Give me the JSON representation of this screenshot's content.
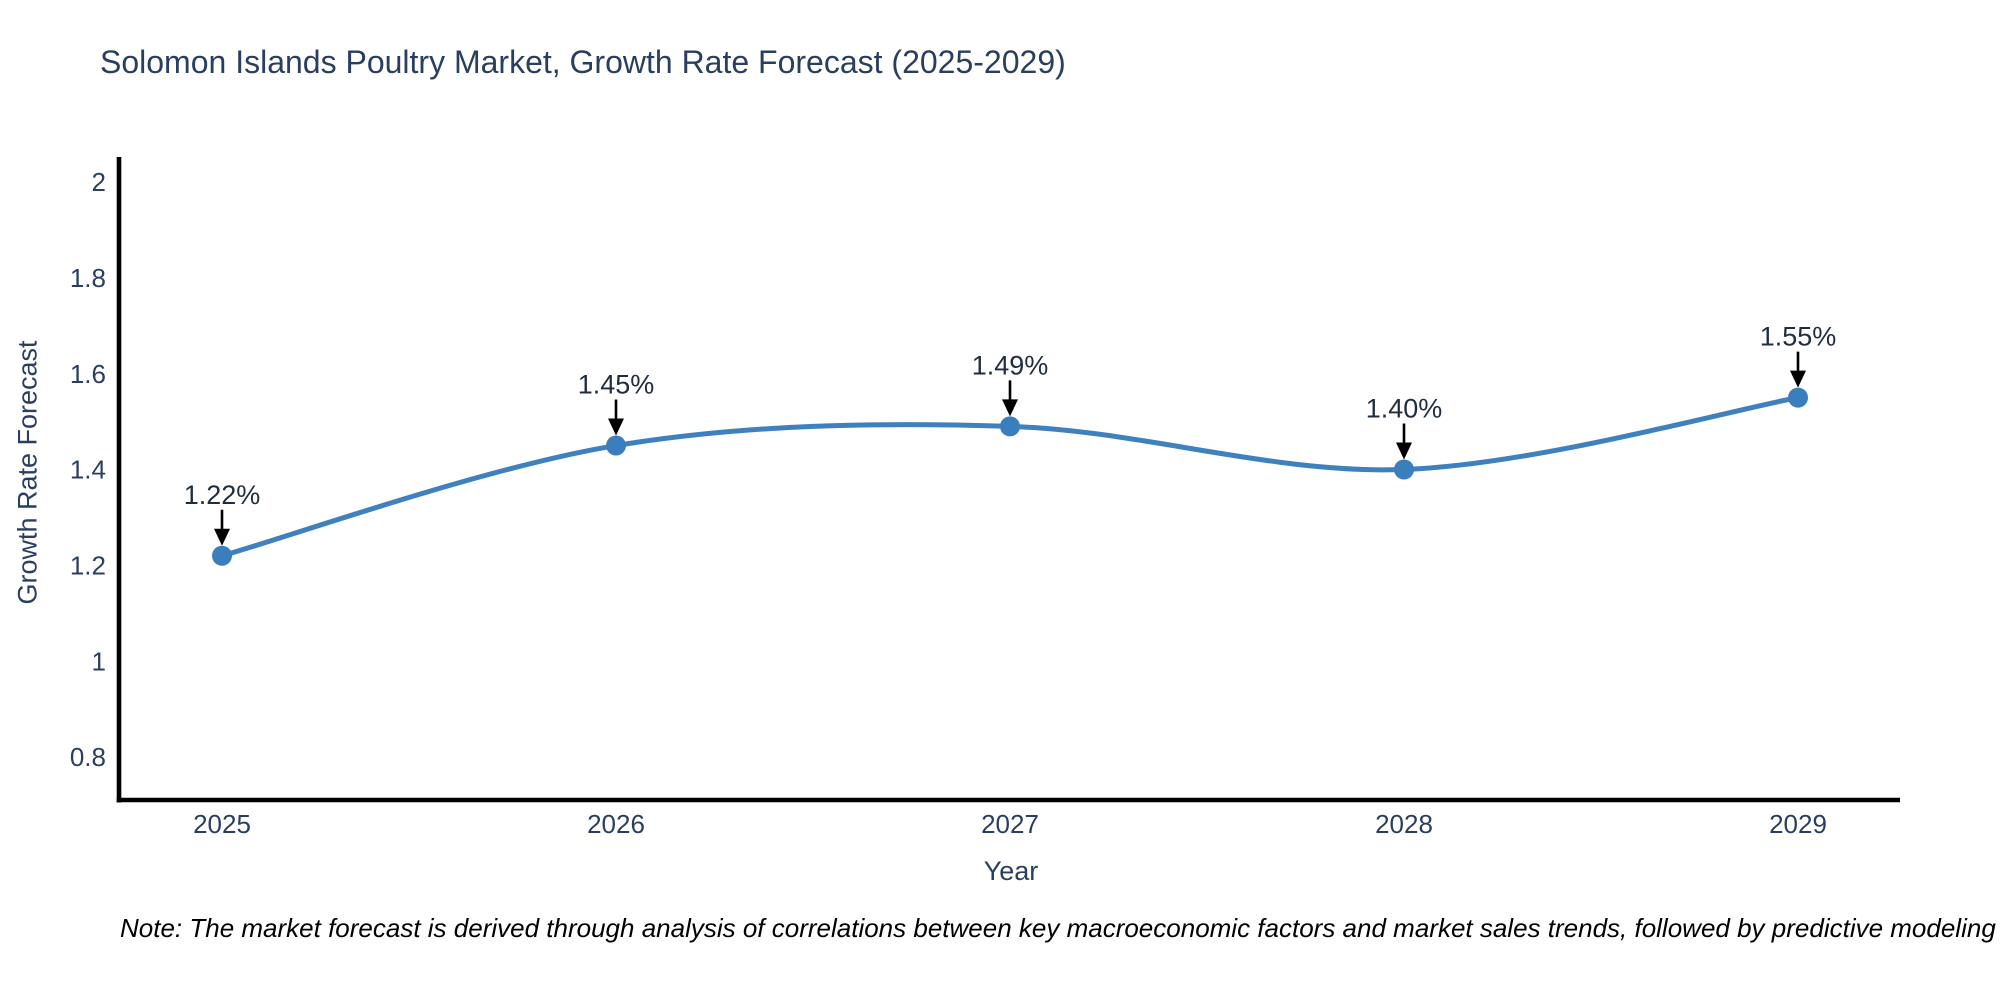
{
  "chart_data": {
    "type": "line",
    "title": "Solomon Islands Poultry Market, Growth Rate Forecast (2025-2029)",
    "xlabel": "Year",
    "ylabel": "Growth Rate Forecast",
    "categories": [
      "2025",
      "2026",
      "2027",
      "2028",
      "2029"
    ],
    "series": [
      {
        "name": "Growth Rate Forecast",
        "values": [
          1.22,
          1.45,
          1.49,
          1.4,
          1.55
        ],
        "point_labels": [
          "1.22%",
          "1.45%",
          "1.49%",
          "1.40%",
          "1.55%"
        ]
      }
    ],
    "y_ticks": [
      0.8,
      1,
      1.2,
      1.4,
      1.6,
      1.8,
      2
    ],
    "y_tick_labels": [
      "0.8",
      "1",
      "1.2",
      "1.4",
      "1.6",
      "1.8",
      "2"
    ],
    "ylim": [
      0.71,
      2.05
    ],
    "line_shape": "spline",
    "grid": false,
    "legend_position": "none",
    "annotations_have_arrows": true,
    "colors": {
      "line": "#3f80bf",
      "marker": "#3a7ebd",
      "arrow": "#000000",
      "axis_line": "#000000",
      "tick_text": "#2a3f5f",
      "annotation_text": "#1f2d3d",
      "title_text": "#2a3f5f",
      "note_text": "#000000",
      "background": "#ffffff"
    }
  },
  "footnote": "Note: The market forecast is derived through analysis of correlations between key macroeconomic factors and market sales trends, followed by predictive modeling to project future sales"
}
